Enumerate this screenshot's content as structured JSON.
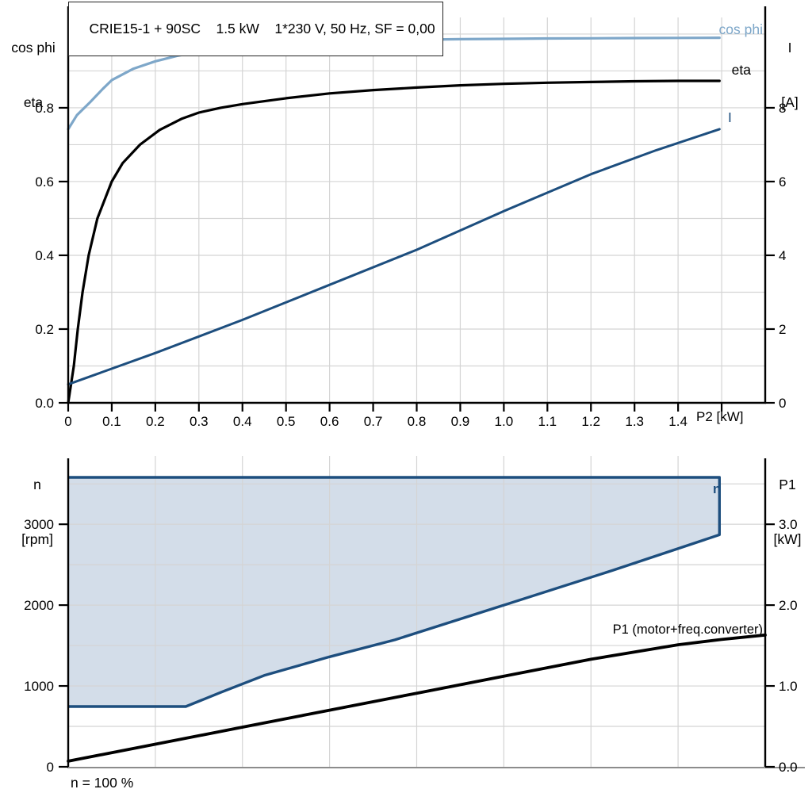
{
  "header": {
    "title": "CRIE15-1 + 90SC    1.5 kW    1*230 V, 50 Hz, SF = 0,00"
  },
  "colors": {
    "cos_phi": "#7ea7c9",
    "eta": "#000000",
    "current": "#1d4e7e",
    "region_fill": "#d3dde9",
    "region_stroke": "#1d4e7e",
    "grid": "#d4d4d4",
    "axis": "#000000",
    "baseline_gray": "#8c8c8c"
  },
  "chart_data": [
    {
      "type": "line",
      "title": "CRIE15-1 + 90SC 1.5 kW 1*230 V, 50 Hz, SF = 0,00",
      "xlabel": "P2 [kW]",
      "ylabel_left_lines": [
        "cos phi",
        "eta"
      ],
      "ylabel_right_lines": [
        "I",
        "[A]"
      ],
      "xlim": [
        0,
        1.6
      ],
      "ylim_left": [
        0,
        1.045
      ],
      "ylim_right": [
        0,
        10.45
      ],
      "grid": true,
      "x_gridlines": [
        0.1,
        0.2,
        0.3,
        0.4,
        0.5,
        0.6,
        0.7,
        0.8,
        0.9,
        1.0,
        1.1,
        1.2,
        1.3,
        1.4,
        1.5
      ],
      "y_gridlines_left": [
        0.1,
        0.2,
        0.3,
        0.4,
        0.5,
        0.6,
        0.7,
        0.8,
        0.9,
        1.0
      ],
      "x_ticks": [
        {
          "value": 0,
          "label": "0"
        },
        {
          "value": 0.1,
          "label": "0.1"
        },
        {
          "value": 0.2,
          "label": "0.2"
        },
        {
          "value": 0.3,
          "label": "0.3"
        },
        {
          "value": 0.4,
          "label": "0.4"
        },
        {
          "value": 0.5,
          "label": "0.5"
        },
        {
          "value": 0.6,
          "label": "0.6"
        },
        {
          "value": 0.7,
          "label": "0.7"
        },
        {
          "value": 0.8,
          "label": "0.8"
        },
        {
          "value": 0.9,
          "label": "0.9"
        },
        {
          "value": 1.0,
          "label": "1.0"
        },
        {
          "value": 1.1,
          "label": "1.1"
        },
        {
          "value": 1.2,
          "label": "1.2"
        },
        {
          "value": 1.3,
          "label": "1.3"
        },
        {
          "value": 1.4,
          "label": "1.4"
        },
        {
          "value": 1.5,
          "label": ""
        }
      ],
      "y_ticks_left": [
        {
          "value": 0,
          "label": "0.0"
        },
        {
          "value": 0.2,
          "label": "0.2"
        },
        {
          "value": 0.4,
          "label": "0.4"
        },
        {
          "value": 0.6,
          "label": "0.6"
        },
        {
          "value": 0.8,
          "label": "0.8"
        }
      ],
      "y_ticks_right": [
        {
          "value": 0,
          "label": "0"
        },
        {
          "value": 2,
          "label": "2"
        },
        {
          "value": 4,
          "label": "4"
        },
        {
          "value": 6,
          "label": "6"
        },
        {
          "value": 8,
          "label": "8"
        }
      ],
      "series": [
        {
          "name": "cos phi",
          "axis": "left",
          "color_key": "cos_phi",
          "width": 3.2,
          "points": [
            [
              0,
              0.742
            ],
            [
              0.02,
              0.78
            ],
            [
              0.05,
              0.815
            ],
            [
              0.08,
              0.852
            ],
            [
              0.1,
              0.875
            ],
            [
              0.15,
              0.906
            ],
            [
              0.2,
              0.926
            ],
            [
              0.25,
              0.941
            ],
            [
              0.3,
              0.952
            ],
            [
              0.4,
              0.965
            ],
            [
              0.5,
              0.974
            ],
            [
              0.6,
              0.979
            ],
            [
              0.7,
              0.982
            ],
            [
              0.8,
              0.9845
            ],
            [
              0.9,
              0.986
            ],
            [
              1.0,
              0.987
            ],
            [
              1.1,
              0.988
            ],
            [
              1.2,
              0.9885
            ],
            [
              1.3,
              0.989
            ],
            [
              1.4,
              0.9895
            ],
            [
              1.495,
              0.99
            ]
          ]
        },
        {
          "name": "eta",
          "axis": "left",
          "color_key": "eta",
          "width": 3.2,
          "points": [
            [
              0,
              0
            ],
            [
              0.013,
              0.1
            ],
            [
              0.022,
              0.2
            ],
            [
              0.033,
              0.3
            ],
            [
              0.047,
              0.4
            ],
            [
              0.067,
              0.5
            ],
            [
              0.1,
              0.6
            ],
            [
              0.125,
              0.65
            ],
            [
              0.165,
              0.7
            ],
            [
              0.21,
              0.74
            ],
            [
              0.26,
              0.77
            ],
            [
              0.3,
              0.787
            ],
            [
              0.35,
              0.8
            ],
            [
              0.4,
              0.81
            ],
            [
              0.5,
              0.826
            ],
            [
              0.6,
              0.839
            ],
            [
              0.7,
              0.848
            ],
            [
              0.8,
              0.855
            ],
            [
              0.9,
              0.861
            ],
            [
              1.0,
              0.865
            ],
            [
              1.1,
              0.868
            ],
            [
              1.2,
              0.87
            ],
            [
              1.3,
              0.872
            ],
            [
              1.4,
              0.873
            ],
            [
              1.495,
              0.873
            ]
          ]
        },
        {
          "name": "I",
          "axis": "right",
          "color_key": "current",
          "width": 3.0,
          "points": [
            [
              0,
              0.5
            ],
            [
              0.2,
              1.35
            ],
            [
              0.4,
              2.25
            ],
            [
              0.6,
              3.2
            ],
            [
              0.8,
              4.15
            ],
            [
              1.0,
              5.2
            ],
            [
              1.2,
              6.2
            ],
            [
              1.35,
              6.85
            ],
            [
              1.495,
              7.42
            ]
          ]
        }
      ]
    },
    {
      "type": "area",
      "xlabel": "",
      "ylabel_left_lines": [
        "n",
        "[rpm]"
      ],
      "ylabel_right_lines": [
        "P1",
        "[kW]"
      ],
      "xlim": [
        0,
        1.6
      ],
      "ylim_left": [
        0,
        3845
      ],
      "ylim_right": [
        0,
        3.845
      ],
      "grid": true,
      "x_gridlines": [
        0.2,
        0.4,
        0.6,
        0.8,
        1.0,
        1.2,
        1.4
      ],
      "y_gridlines_left": [
        500,
        1000,
        1500,
        2000,
        2500,
        3000,
        3500
      ],
      "x_ticks": [],
      "y_ticks_left": [
        {
          "value": 0,
          "label": "0"
        },
        {
          "value": 1000,
          "label": "1000"
        },
        {
          "value": 2000,
          "label": "2000"
        },
        {
          "value": 3000,
          "label": "3000"
        }
      ],
      "y_ticks_right": [
        {
          "value": 0,
          "label": "0.0"
        },
        {
          "value": 1,
          "label": "1.0"
        },
        {
          "value": 2,
          "label": "2.0"
        },
        {
          "value": 3,
          "label": "3.0"
        }
      ],
      "region": {
        "name": "n",
        "label": "n",
        "axis": "left",
        "max_speed_rpm": 3580,
        "min_speed_rpm": 745,
        "points": [
          [
            0,
            3580
          ],
          [
            1.495,
            3580
          ],
          [
            1.495,
            2870
          ],
          [
            1.25,
            2430
          ],
          [
            1.0,
            2000
          ],
          [
            0.75,
            1570
          ],
          [
            0.6,
            1360
          ],
          [
            0.45,
            1130
          ],
          [
            0.35,
            920
          ],
          [
            0.27,
            745
          ],
          [
            0,
            745
          ]
        ]
      },
      "series": [
        {
          "name": "P1 (motor+freq.converter)",
          "axis": "right",
          "color_key": "eta",
          "width": 3.8,
          "points": [
            [
              0,
              0.07
            ],
            [
              0.2,
              0.28
            ],
            [
              0.4,
              0.49
            ],
            [
              0.6,
              0.7
            ],
            [
              0.8,
              0.91
            ],
            [
              1.0,
              1.12
            ],
            [
              1.2,
              1.33
            ],
            [
              1.4,
              1.51
            ],
            [
              1.5,
              1.575
            ],
            [
              1.6,
              1.63
            ]
          ]
        }
      ],
      "annotation": "n = 100 %"
    }
  ],
  "curve_labels": {
    "cos_phi": "cos phi",
    "eta": "eta",
    "current": "I",
    "n": "n",
    "p1": "P1 (motor+freq.converter)"
  }
}
